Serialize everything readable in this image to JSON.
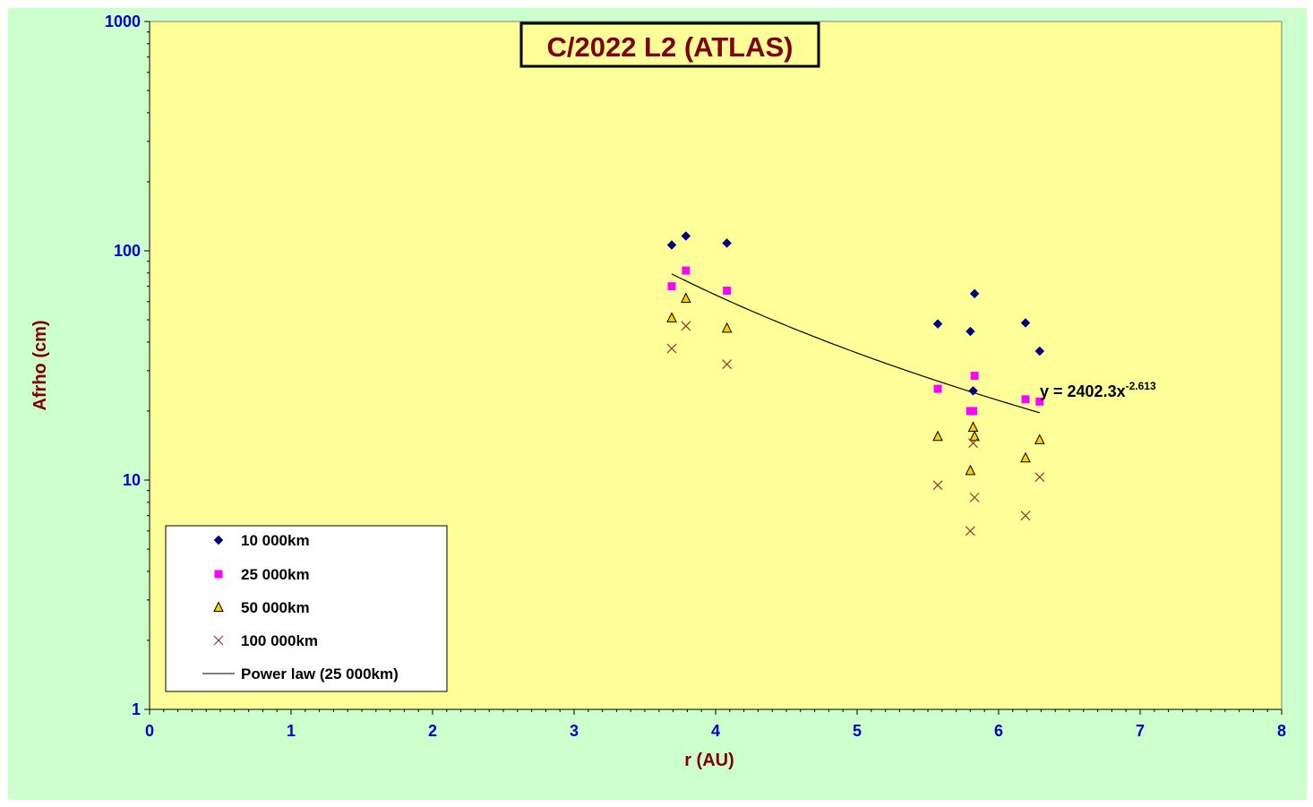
{
  "chart_data": {
    "type": "scatter",
    "title": "C/2022 L2 (ATLAS)",
    "xlabel": "r (AU)",
    "ylabel": "Afrho (cm)",
    "xlim": [
      0,
      8
    ],
    "ylim": [
      1,
      1000
    ],
    "y_scale": "log",
    "x_ticks": [
      "0",
      "1",
      "2",
      "3",
      "4",
      "5",
      "6",
      "7",
      "8"
    ],
    "y_ticks": [
      "1",
      "10",
      "100",
      "1000"
    ],
    "grid": false,
    "legend_position": "bottom-left",
    "plot_background": "#ffff99",
    "chart_background": "#ccffcc",
    "series": [
      {
        "name": "10 000km",
        "marker": "diamond",
        "color": "#000080",
        "points": [
          [
            3.69,
            106
          ],
          [
            3.79,
            116
          ],
          [
            4.08,
            108
          ],
          [
            5.57,
            48
          ],
          [
            5.8,
            44.5
          ],
          [
            5.82,
            24.5
          ],
          [
            5.83,
            65
          ],
          [
            6.19,
            48.5
          ],
          [
            6.29,
            36.5
          ]
        ]
      },
      {
        "name": "25 000km",
        "marker": "square",
        "color": "#ff00ff",
        "points": [
          [
            3.69,
            70
          ],
          [
            3.79,
            82
          ],
          [
            4.08,
            67
          ],
          [
            5.57,
            25
          ],
          [
            5.8,
            20
          ],
          [
            5.82,
            20
          ],
          [
            5.83,
            28.5
          ],
          [
            6.19,
            22.5
          ],
          [
            6.29,
            22
          ]
        ]
      },
      {
        "name": "50 000km",
        "marker": "triangle",
        "color": "#ffcc00",
        "points": [
          [
            3.69,
            51
          ],
          [
            3.79,
            62
          ],
          [
            4.08,
            46
          ],
          [
            5.57,
            15.5
          ],
          [
            5.8,
            11
          ],
          [
            5.82,
            17
          ],
          [
            5.83,
            15.5
          ],
          [
            6.19,
            12.5
          ],
          [
            6.29,
            15
          ]
        ]
      },
      {
        "name": "100 000km",
        "marker": "cross",
        "color": "#993333",
        "points": [
          [
            3.69,
            37.5
          ],
          [
            3.79,
            47
          ],
          [
            4.08,
            32
          ],
          [
            5.57,
            9.5
          ],
          [
            5.8,
            6
          ],
          [
            5.82,
            14.5
          ],
          [
            5.83,
            8.4
          ],
          [
            6.19,
            7
          ],
          [
            6.29,
            10.3
          ]
        ]
      }
    ],
    "trendline": {
      "name": "Power law (25 000km)",
      "type": "power",
      "coefficient": 2402.3,
      "exponent": -2.613,
      "x_range": [
        3.69,
        6.29
      ],
      "color": "#000000",
      "equation_prefix": "y = 2402.3x",
      "equation_exponent": "-2.613"
    }
  }
}
